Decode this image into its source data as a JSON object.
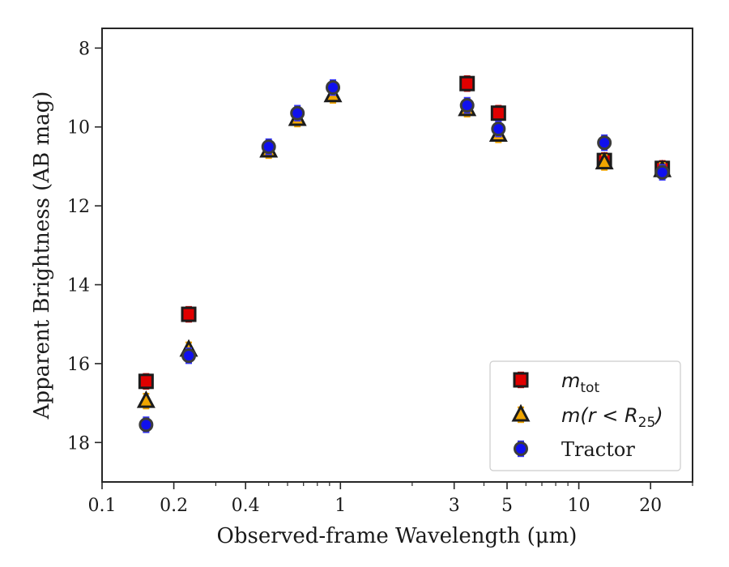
{
  "chart_data": {
    "type": "scatter",
    "title": "",
    "xlabel": "Observed-frame Wavelength (μm)",
    "ylabel": "Apparent Brightness (AB mag)",
    "x_scale": "log",
    "y_inverted": true,
    "xlim": [
      0.1,
      30
    ],
    "ylim": [
      19,
      7.5
    ],
    "x_ticks": [
      {
        "value": 0.1,
        "label": "0.1"
      },
      {
        "value": 0.2,
        "label": "0.2"
      },
      {
        "value": 0.4,
        "label": "0.4"
      },
      {
        "value": 1,
        "label": "1"
      },
      {
        "value": 3,
        "label": "3"
      },
      {
        "value": 5,
        "label": "5"
      },
      {
        "value": 10,
        "label": "10"
      },
      {
        "value": 20,
        "label": "20"
      }
    ],
    "y_ticks": [
      {
        "value": 8,
        "label": "8"
      },
      {
        "value": 10,
        "label": "10"
      },
      {
        "value": 12,
        "label": "12"
      },
      {
        "value": 14,
        "label": "14"
      },
      {
        "value": 16,
        "label": "16"
      },
      {
        "value": 18,
        "label": "18"
      }
    ],
    "grid": false,
    "legend_position": "lower right",
    "series": [
      {
        "name": "m_tot",
        "marker": "square",
        "color": "#e00000",
        "errcolor": "#d00000",
        "points": [
          {
            "x": 0.153,
            "y": 16.45
          },
          {
            "x": 0.231,
            "y": 14.75
          },
          {
            "x": 3.4,
            "y": 8.9
          },
          {
            "x": 4.6,
            "y": 9.65
          },
          {
            "x": 12.8,
            "y": 10.85
          },
          {
            "x": 22.4,
            "y": 11.05
          }
        ]
      },
      {
        "name": "m(r < R25)",
        "marker": "triangle",
        "color": "#f0a500",
        "errcolor": "#f0a500",
        "points": [
          {
            "x": 0.153,
            "y": 16.95
          },
          {
            "x": 0.231,
            "y": 15.65
          },
          {
            "x": 0.5,
            "y": 10.6
          },
          {
            "x": 0.66,
            "y": 9.8
          },
          {
            "x": 0.93,
            "y": 9.2
          },
          {
            "x": 3.4,
            "y": 9.55
          },
          {
            "x": 4.6,
            "y": 10.2
          },
          {
            "x": 12.8,
            "y": 10.9
          },
          {
            "x": 22.4,
            "y": 11.1
          }
        ]
      },
      {
        "name": "Tractor",
        "marker": "circle",
        "color": "#1010ee",
        "errcolor": "#3030ff",
        "points": [
          {
            "x": 0.153,
            "y": 17.55
          },
          {
            "x": 0.231,
            "y": 15.8
          },
          {
            "x": 0.5,
            "y": 10.5
          },
          {
            "x": 0.66,
            "y": 9.65
          },
          {
            "x": 0.93,
            "y": 9.0
          },
          {
            "x": 3.4,
            "y": 9.45
          },
          {
            "x": 4.6,
            "y": 10.05
          },
          {
            "x": 12.8,
            "y": 10.4
          },
          {
            "x": 22.4,
            "y": 11.15
          }
        ]
      }
    ],
    "legend": [
      {
        "label": "Tractor",
        "marker": "circle"
      }
    ]
  }
}
